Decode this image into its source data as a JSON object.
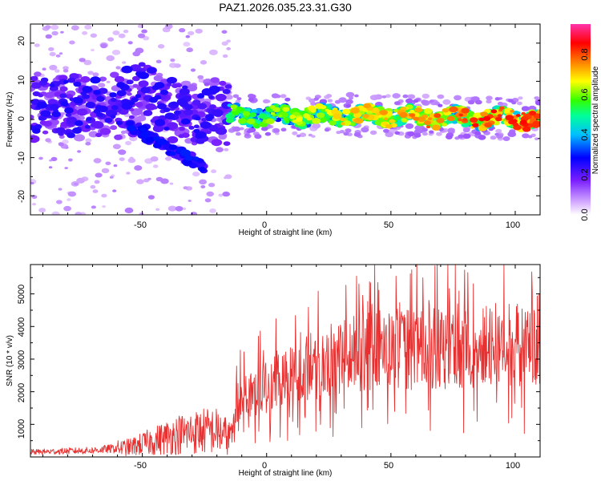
{
  "figure_title": "PAZ1.2026.035.23.31.G30",
  "chart_data": [
    {
      "type": "heatmap",
      "title": "PAZ1.2026.035.23.31.G30",
      "xlabel": "Height of straight line (km)",
      "ylabel": "Frequency (Hz)",
      "xlim": [
        -95,
        110
      ],
      "ylim": [
        -25,
        25
      ],
      "xticks": [
        -50,
        0,
        50,
        100
      ],
      "xtick_labels": [
        "-50",
        "0",
        "50",
        "100"
      ],
      "yticks": [
        -20,
        -10,
        0,
        10,
        20
      ],
      "ytick_labels": [
        "-20",
        "-10",
        "0",
        "10",
        "20"
      ],
      "grid": false,
      "colorbar": {
        "label": "Normalized spectral amplitude",
        "range": [
          0,
          0.95
        ],
        "ticks": [
          0.0,
          0.2,
          0.4,
          0.6,
          0.8
        ],
        "tick_labels": [
          "0.0",
          "0.2",
          "0.4",
          "0.6",
          "0.8"
        ],
        "colormap": "rainbow (white-violet-blue-cyan-green-yellow-red-magenta)"
      },
      "description_points": {
        "ridge_x": [
          -95,
          -80,
          -65,
          -50,
          -40,
          -30,
          -20,
          -15,
          0,
          25,
          50,
          75,
          100,
          110
        ],
        "ridge_y": [
          3,
          4,
          2,
          7,
          2,
          1,
          2,
          1,
          1,
          1,
          1,
          0.5,
          0.3,
          0.2
        ],
        "ridge_amplitude": [
          0.25,
          0.25,
          0.28,
          0.35,
          0.3,
          0.25,
          0.22,
          0.6,
          0.6,
          0.68,
          0.72,
          0.8,
          0.85,
          0.78
        ]
      }
    },
    {
      "type": "line",
      "xlabel": "Height of straight line (km)",
      "ylabel": "SNR (10 * v/v)",
      "xlim": [
        -95,
        110
      ],
      "ylim": [
        0,
        5900
      ],
      "xticks": [
        -50,
        0,
        50,
        100
      ],
      "xtick_labels": [
        "-50",
        "0",
        "50",
        "100"
      ],
      "yticks": [
        1000,
        2000,
        3000,
        4000,
        5000
      ],
      "ytick_labels": [
        "1000",
        "2000",
        "3000",
        "4000",
        "5000"
      ],
      "grid": false,
      "series": [
        {
          "name": "SNR",
          "color": "#e83030",
          "trend_x": [
            -95,
            -70,
            -55,
            -45,
            -35,
            -25,
            -20,
            -15,
            -12,
            -8,
            0,
            10,
            20,
            30,
            40,
            50,
            60,
            70,
            80,
            90,
            100,
            110
          ],
          "trend_y": [
            150,
            200,
            300,
            500,
            700,
            800,
            800,
            600,
            1700,
            2000,
            2100,
            2500,
            2800,
            3100,
            3200,
            3300,
            3300,
            3300,
            3300,
            3400,
            3400,
            3400
          ]
        }
      ]
    }
  ]
}
